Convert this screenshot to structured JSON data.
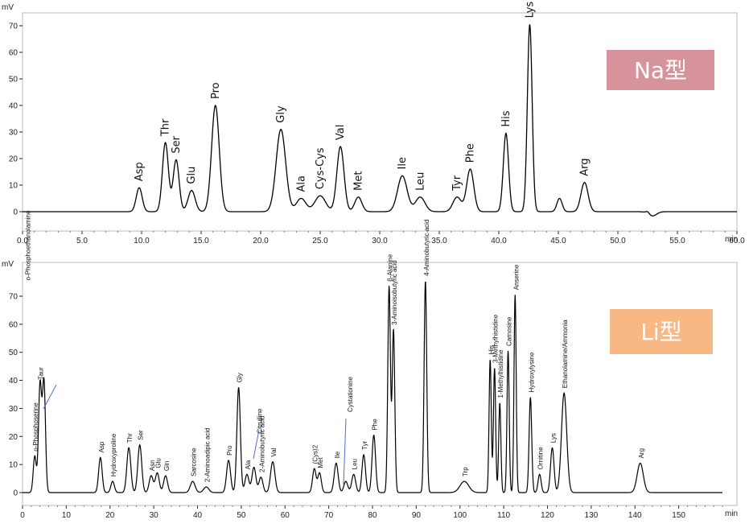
{
  "chart_data": [
    {
      "type": "line",
      "title": "",
      "xlabel": "min",
      "ylabel": "mV",
      "badge": "Na型",
      "badge_color": "#d7939c",
      "xlim": [
        0,
        60
      ],
      "ylim": [
        -3,
        75
      ],
      "xticks": [
        0,
        5,
        10,
        15,
        20,
        25,
        30,
        35,
        40,
        45,
        50,
        55,
        60
      ],
      "xtick_labels": [
        "0.0",
        "5.0",
        "10.0",
        "15.0",
        "20.0",
        "25.0",
        "30.0",
        "35.0",
        "40.0",
        "45.0",
        "50.0",
        "55.0",
        "60.0"
      ],
      "yticks": [
        0,
        10,
        20,
        30,
        40,
        50,
        60,
        70
      ],
      "grid": false,
      "peaks": [
        {
          "name": "Asp",
          "x": 9.8,
          "y": 9,
          "w": 0.25
        },
        {
          "name": "Thr",
          "x": 12.0,
          "y": 26,
          "w": 0.25
        },
        {
          "name": "Ser",
          "x": 12.9,
          "y": 19.5,
          "w": 0.25
        },
        {
          "name": "Glu",
          "x": 14.2,
          "y": 8,
          "w": 0.3
        },
        {
          "name": "Pro",
          "x": 16.2,
          "y": 40,
          "w": 0.32
        },
        {
          "name": "Gly",
          "x": 21.7,
          "y": 31,
          "w": 0.4
        },
        {
          "name": "Ala",
          "x": 23.4,
          "y": 5,
          "w": 0.4
        },
        {
          "name": "Cys-Cys",
          "x": 25.0,
          "y": 6,
          "w": 0.45
        },
        {
          "name": "Val",
          "x": 26.7,
          "y": 24.5,
          "w": 0.3
        },
        {
          "name": "Met",
          "x": 28.2,
          "y": 5.5,
          "w": 0.3
        },
        {
          "name": "Ile",
          "x": 31.9,
          "y": 13.5,
          "w": 0.4
        },
        {
          "name": "Leu",
          "x": 33.4,
          "y": 5.5,
          "w": 0.4
        },
        {
          "name": "Tyr",
          "x": 36.5,
          "y": 5.5,
          "w": 0.35
        },
        {
          "name": "Phe",
          "x": 37.6,
          "y": 16,
          "w": 0.3
        },
        {
          "name": "His",
          "x": 40.6,
          "y": 29.5,
          "w": 0.22
        },
        {
          "name": "Lys",
          "x": 42.6,
          "y": 70.5,
          "w": 0.2
        },
        {
          "name": "",
          "x": 45.1,
          "y": 5,
          "w": 0.22
        },
        {
          "name": "Arg",
          "x": 47.2,
          "y": 11,
          "w": 0.3
        }
      ]
    },
    {
      "type": "line",
      "title": "",
      "xlabel": "min",
      "ylabel": "mV",
      "badge": "Li型",
      "badge_color": "#f7b886",
      "xlim": [
        0,
        160
      ],
      "ylim": [
        -5,
        80
      ],
      "xticks": [
        0,
        10,
        20,
        30,
        40,
        50,
        60,
        70,
        80,
        90,
        100,
        110,
        120,
        130,
        140,
        150
      ],
      "xtick_labels": [
        "0",
        "10",
        "20",
        "30",
        "40",
        "50",
        "60",
        "70",
        "80",
        "90",
        "100",
        "110",
        "120",
        "130",
        "140",
        "150"
      ],
      "yticks": [
        0,
        10,
        20,
        30,
        40,
        50,
        60,
        70
      ],
      "grid": false,
      "peaks": [
        {
          "name": "o-Phosphoserine",
          "x": 2.8,
          "y": 13,
          "w": 0.35
        },
        {
          "name": "Taur",
          "x": 4.0,
          "y": 38.5,
          "w": 0.35
        },
        {
          "name": "o-Phosphoethanolamine",
          "x": 4.9,
          "y": 39.5,
          "w": 0.35
        },
        {
          "name": "Asp",
          "x": 17.8,
          "y": 12.5,
          "w": 0.4
        },
        {
          "name": "Hydroxyproline",
          "x": 20.6,
          "y": 4,
          "w": 0.4
        },
        {
          "name": "Thr",
          "x": 24.3,
          "y": 16,
          "w": 0.45
        },
        {
          "name": "Ser",
          "x": 26.8,
          "y": 17,
          "w": 0.45
        },
        {
          "name": "Asn",
          "x": 29.4,
          "y": 6,
          "w": 0.45
        },
        {
          "name": "Glu",
          "x": 30.8,
          "y": 7,
          "w": 0.45
        },
        {
          "name": "Gln",
          "x": 32.7,
          "y": 6,
          "w": 0.45
        },
        {
          "name": "Sarcosine",
          "x": 38.9,
          "y": 4,
          "w": 0.55
        },
        {
          "name": "2-Aminoadipic acid",
          "x": 42.0,
          "y": 2,
          "w": 0.6
        },
        {
          "name": "Pro",
          "x": 47.1,
          "y": 11.5,
          "w": 0.45
        },
        {
          "name": "Gly",
          "x": 49.4,
          "y": 37.5,
          "w": 0.4
        },
        {
          "name": "Ala",
          "x": 51.3,
          "y": 6.5,
          "w": 0.45
        },
        {
          "name": "Citrulline",
          "x": 52.9,
          "y": 9,
          "w": 0.45
        },
        {
          "name": "2-Aminobutyric acid",
          "x": 54.5,
          "y": 5.5,
          "w": 0.45
        },
        {
          "name": "Val",
          "x": 57.2,
          "y": 11,
          "w": 0.5
        },
        {
          "name": "(Cys)2",
          "x": 66.7,
          "y": 8.5,
          "w": 0.4
        },
        {
          "name": "Met",
          "x": 67.9,
          "y": 7,
          "w": 0.4
        },
        {
          "name": "Ile",
          "x": 71.7,
          "y": 10.5,
          "w": 0.45
        },
        {
          "name": "Cystationine",
          "x": 73.9,
          "y": 4,
          "w": 0.45
        },
        {
          "name": "Leu",
          "x": 75.7,
          "y": 6.5,
          "w": 0.45
        },
        {
          "name": "Tyr",
          "x": 78.0,
          "y": 13.5,
          "w": 0.4
        },
        {
          "name": "Phe",
          "x": 80.3,
          "y": 20.5,
          "w": 0.4
        },
        {
          "name": "β-Alanine",
          "x": 83.8,
          "y": 73.5,
          "w": 0.3
        },
        {
          "name": "3-Aminoisobutyric acid",
          "x": 84.8,
          "y": 58,
          "w": 0.3
        },
        {
          "name": "4-Aminobutyric acid",
          "x": 92.1,
          "y": 75.5,
          "w": 0.3
        },
        {
          "name": "Trp",
          "x": 101.0,
          "y": 4,
          "w": 1.0
        },
        {
          "name": "His",
          "x": 106.9,
          "y": 47.5,
          "w": 0.25
        },
        {
          "name": "3-Methylhistidine",
          "x": 107.9,
          "y": 44.5,
          "w": 0.25
        },
        {
          "name": "1-Methylhistidine",
          "x": 109.1,
          "y": 32,
          "w": 0.25
        },
        {
          "name": "Carnosine",
          "x": 111.0,
          "y": 50.5,
          "w": 0.25
        },
        {
          "name": "Anserine",
          "x": 112.6,
          "y": 70.5,
          "w": 0.25
        },
        {
          "name": "Hydroxylysine",
          "x": 116.1,
          "y": 34,
          "w": 0.3
        },
        {
          "name": "Ornitine",
          "x": 118.2,
          "y": 6.5,
          "w": 0.35
        },
        {
          "name": "Lys",
          "x": 121.1,
          "y": 16,
          "w": 0.4
        },
        {
          "name": "Ethanolamine/Ammonia",
          "x": 123.8,
          "y": 35.5,
          "w": 0.6
        },
        {
          "name": "Arg",
          "x": 141.2,
          "y": 10.5,
          "w": 0.7
        }
      ]
    }
  ]
}
